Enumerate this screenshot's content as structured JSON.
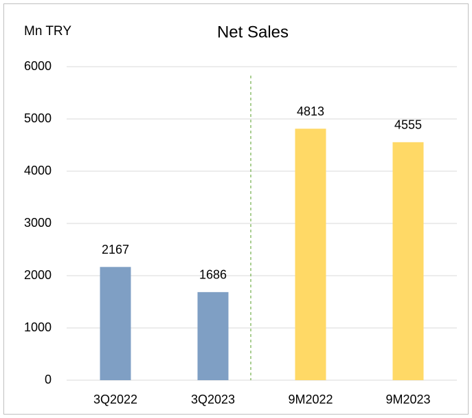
{
  "chart_data": {
    "type": "bar",
    "title": "Net Sales",
    "y_label": "Mn TRY",
    "categories": [
      "3Q2022",
      "3Q2023",
      "9M2022",
      "9M2023"
    ],
    "values": [
      2167,
      1686,
      4813,
      4555
    ],
    "colors": [
      "#7f9fc4",
      "#7f9fc4",
      "#ffd966",
      "#ffd966"
    ],
    "ylim": [
      0,
      6000
    ],
    "yticks": [
      0,
      1000,
      2000,
      3000,
      4000,
      5000,
      6000
    ],
    "grid": true,
    "data_labels": true
  }
}
